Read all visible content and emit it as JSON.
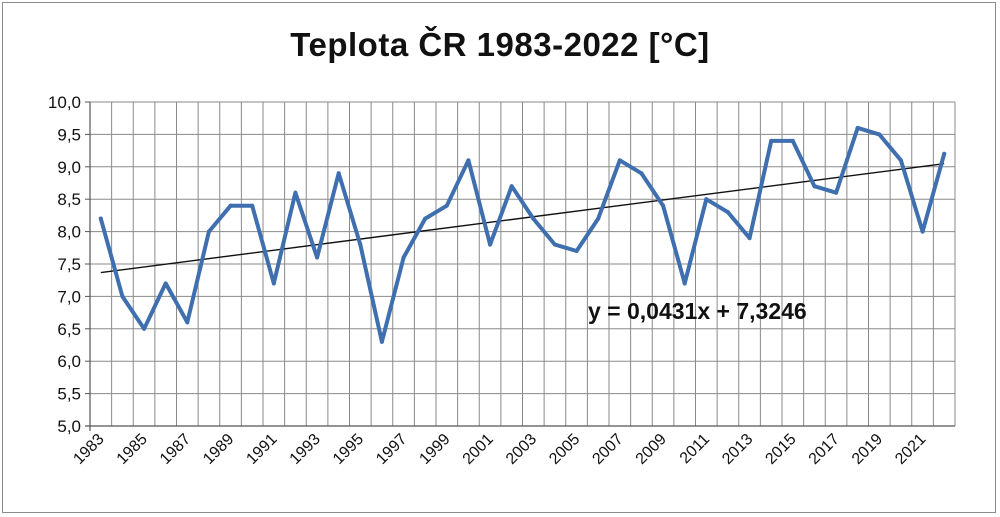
{
  "chart_data": {
    "type": "line",
    "title": "Teplota ČR 1983-2022 [°C]",
    "xlabel": "",
    "ylabel": "",
    "ylim": [
      5.0,
      10.0
    ],
    "y_ticks": [
      "5,0",
      "5,5",
      "6,0",
      "6,5",
      "7,0",
      "7,5",
      "8,0",
      "8,5",
      "9,0",
      "9,5",
      "10,0"
    ],
    "x_tick_labels": [
      "1983",
      "1985",
      "1987",
      "1989",
      "1991",
      "1993",
      "1995",
      "1997",
      "1999",
      "2001",
      "2003",
      "2005",
      "2007",
      "2009",
      "2011",
      "2013",
      "2015",
      "2017",
      "2019",
      "2021"
    ],
    "grid": true,
    "series": [
      {
        "name": "Teplota",
        "color": "#3f6fae",
        "x": [
          1983,
          1984,
          1985,
          1986,
          1987,
          1988,
          1989,
          1990,
          1991,
          1992,
          1993,
          1994,
          1995,
          1996,
          1997,
          1998,
          1999,
          2000,
          2001,
          2002,
          2003,
          2004,
          2005,
          2006,
          2007,
          2008,
          2009,
          2010,
          2011,
          2012,
          2013,
          2014,
          2015,
          2016,
          2017,
          2018,
          2019,
          2020,
          2021,
          2022
        ],
        "values": [
          8.2,
          7.0,
          6.5,
          7.2,
          6.6,
          8.0,
          8.4,
          8.4,
          7.2,
          8.6,
          7.6,
          8.9,
          7.8,
          6.3,
          7.6,
          8.2,
          8.4,
          9.1,
          7.8,
          8.7,
          8.2,
          7.8,
          7.7,
          8.2,
          9.1,
          8.9,
          8.4,
          7.2,
          8.5,
          8.3,
          7.9,
          9.4,
          9.4,
          8.7,
          8.6,
          9.6,
          9.5,
          9.1,
          8.0,
          9.2
        ]
      }
    ],
    "trendline": {
      "slope": 0.0431,
      "intercept": 7.3246,
      "color": "#111111",
      "equation_label": "y = 0,0431x + 7,3246"
    }
  }
}
